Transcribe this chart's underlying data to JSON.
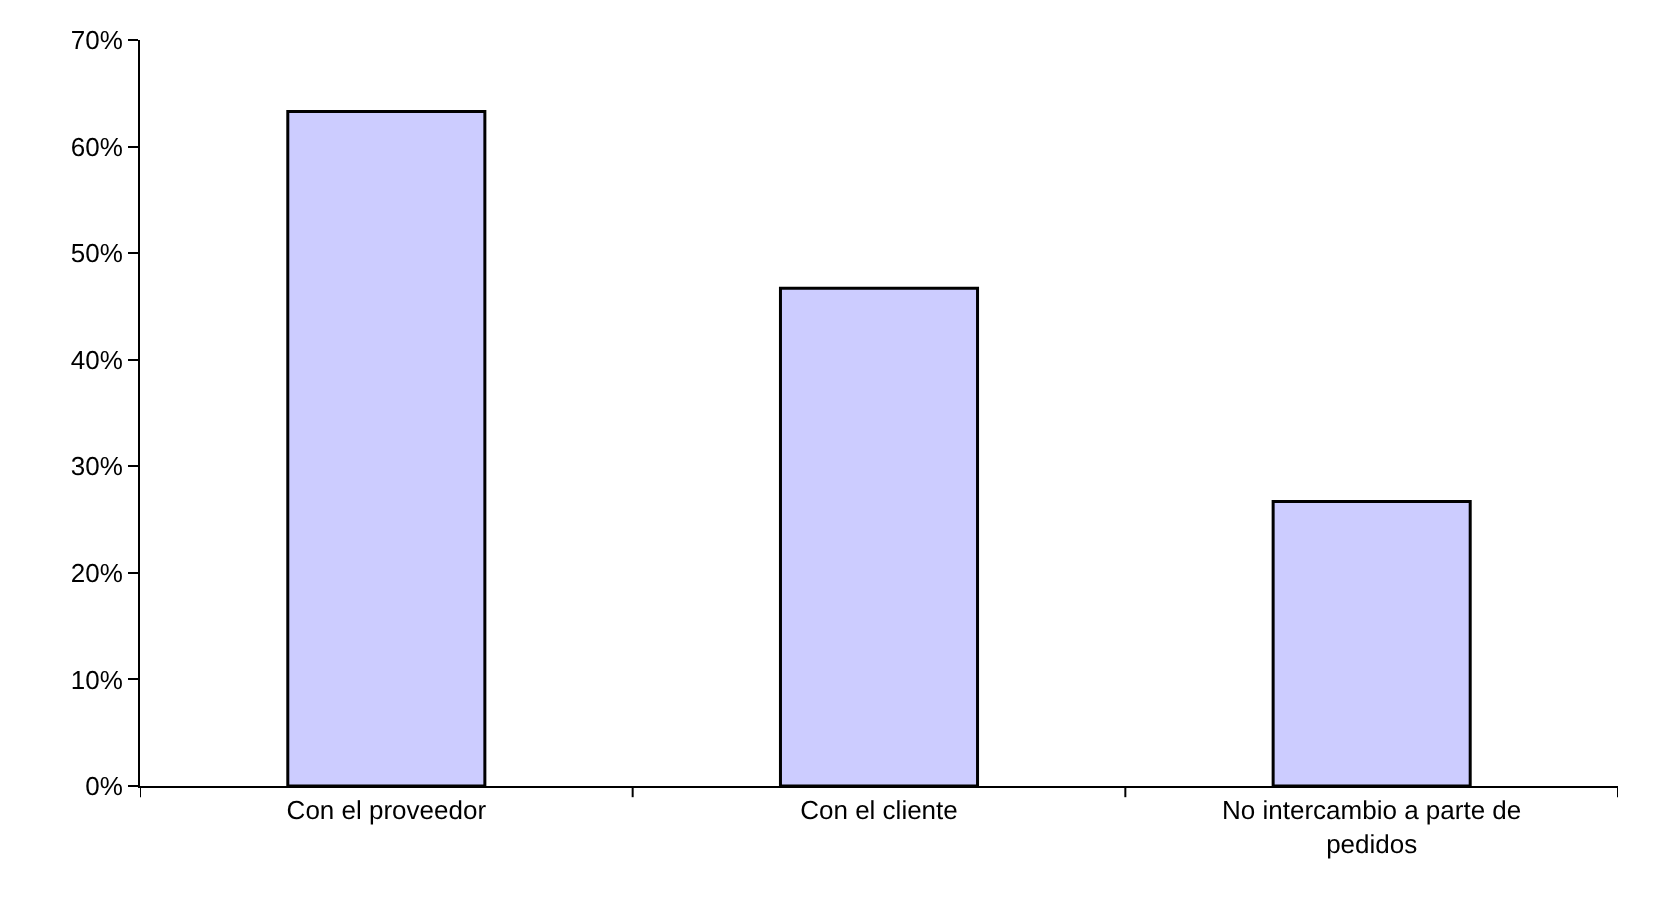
{
  "chart_data": {
    "type": "bar",
    "categories": [
      "Con el proveedor",
      "Con el cliente",
      "No intercambio a parte de\npedidos"
    ],
    "values": [
      63.3,
      46.7,
      26.7
    ],
    "color": "#ccccff",
    "ylim": [
      0,
      70
    ],
    "yticks": [
      {
        "value": 0,
        "label": "0%"
      },
      {
        "value": 10,
        "label": "10%"
      },
      {
        "value": 20,
        "label": "20%"
      },
      {
        "value": 30,
        "label": "30%"
      },
      {
        "value": 40,
        "label": "40%"
      },
      {
        "value": 50,
        "label": "50%"
      },
      {
        "value": 60,
        "label": "60%"
      },
      {
        "value": 70,
        "label": "70%"
      }
    ],
    "grid": false
  }
}
